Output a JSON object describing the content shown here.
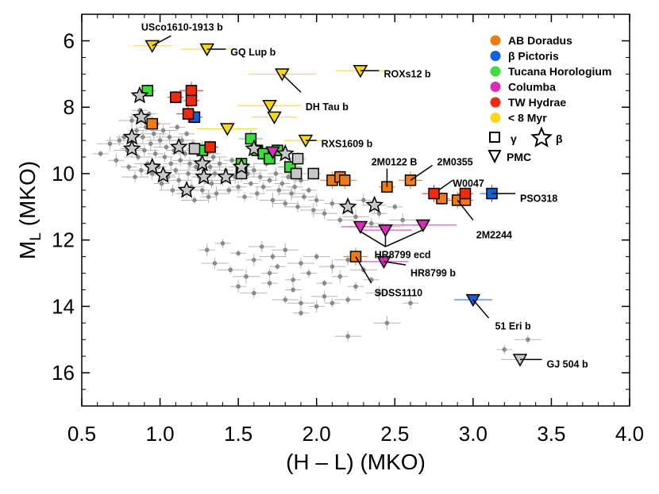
{
  "chart_data": {
    "type": "scatter",
    "xlabel": "(H – L) (MKO)",
    "ylabel_main": "M",
    "ylabel_sub": "L",
    "ylabel_suffix": " (MKO)",
    "xlim": [
      0.5,
      4.0
    ],
    "ylim": [
      17.0,
      5.2
    ],
    "xticks": [
      0.5,
      1.0,
      1.5,
      2.0,
      2.5,
      3.0,
      3.5,
      4.0
    ],
    "yticks": [
      6,
      8,
      10,
      12,
      14,
      16
    ],
    "colors": {
      "AB Doradus": "#f07a14",
      "β Pictoris": "#1460d8",
      "Tucana Horologium": "#3ddc3d",
      "Columba": "#d62eb4",
      "TW Hydrae": "#f02a10",
      "< 8 Myr": "#f5d81c",
      "field": "#8a8a8a",
      "gamma": "#c8c8c8",
      "beta": "#c8c8c8"
    },
    "legend": {
      "groups": [
        "AB Doradus",
        "β Pictoris",
        "Tucana Horologium",
        "Columba",
        "TW Hydrae",
        "< 8 Myr"
      ],
      "gamma_label": "γ",
      "beta_label": "β",
      "pmc_label": "PMC"
    },
    "field": [
      [
        0.62,
        9.4
      ],
      [
        0.68,
        9.1
      ],
      [
        0.72,
        9.6
      ],
      [
        0.74,
        9.0
      ],
      [
        0.77,
        8.9
      ],
      [
        0.79,
        9.3
      ],
      [
        0.8,
        9.8
      ],
      [
        0.82,
        8.4
      ],
      [
        0.83,
        9.2
      ],
      [
        0.84,
        10.1
      ],
      [
        0.85,
        8.7
      ],
      [
        0.86,
        9.5
      ],
      [
        0.87,
        8.1
      ],
      [
        0.88,
        9.9
      ],
      [
        0.89,
        8.9
      ],
      [
        0.9,
        9.3
      ],
      [
        0.91,
        8.6
      ],
      [
        0.92,
        9.7
      ],
      [
        0.93,
        8.2
      ],
      [
        0.94,
        9.1
      ],
      [
        0.95,
        10.0
      ],
      [
        0.96,
        8.8
      ],
      [
        0.97,
        9.4
      ],
      [
        0.98,
        8.5
      ],
      [
        0.99,
        9.8
      ],
      [
        1.0,
        9.0
      ],
      [
        1.01,
        10.3
      ],
      [
        1.02,
        8.7
      ],
      [
        1.03,
        9.5
      ],
      [
        1.04,
        9.2
      ],
      [
        1.05,
        10.1
      ],
      [
        1.06,
        8.9
      ],
      [
        1.07,
        9.7
      ],
      [
        1.08,
        10.5
      ],
      [
        1.09,
        9.3
      ],
      [
        1.1,
        9.9
      ],
      [
        1.11,
        8.6
      ],
      [
        1.12,
        10.2
      ],
      [
        1.13,
        9.6
      ],
      [
        1.14,
        9.0
      ],
      [
        1.15,
        10.6
      ],
      [
        1.16,
        9.4
      ],
      [
        1.17,
        8.8
      ],
      [
        1.18,
        10.0
      ],
      [
        1.19,
        9.7
      ],
      [
        1.2,
        10.4
      ],
      [
        1.21,
        9.1
      ],
      [
        1.22,
        10.8
      ],
      [
        1.23,
        9.8
      ],
      [
        1.24,
        9.3
      ],
      [
        1.25,
        10.1
      ],
      [
        1.26,
        9.6
      ],
      [
        1.27,
        10.5
      ],
      [
        1.28,
        9.9
      ],
      [
        1.29,
        10.2
      ],
      [
        1.3,
        9.4
      ],
      [
        1.31,
        10.7
      ],
      [
        1.32,
        9.8
      ],
      [
        1.33,
        10.3
      ],
      [
        1.34,
        9.5
      ],
      [
        1.35,
        10.0
      ],
      [
        1.36,
        10.6
      ],
      [
        1.38,
        9.7
      ],
      [
        1.4,
        10.2
      ],
      [
        1.42,
        9.9
      ],
      [
        1.44,
        10.5
      ],
      [
        1.46,
        9.6
      ],
      [
        1.48,
        10.1
      ],
      [
        1.5,
        10.4
      ],
      [
        1.52,
        9.8
      ],
      [
        1.54,
        10.7
      ],
      [
        1.56,
        10.0
      ],
      [
        1.58,
        10.3
      ],
      [
        1.6,
        9.9
      ],
      [
        1.62,
        10.6
      ],
      [
        1.64,
        10.1
      ],
      [
        1.66,
        10.4
      ],
      [
        1.68,
        9.7
      ],
      [
        1.7,
        10.2
      ],
      [
        1.72,
        10.8
      ],
      [
        1.74,
        10.0
      ],
      [
        1.76,
        10.5
      ],
      [
        1.78,
        10.3
      ],
      [
        1.8,
        10.9
      ],
      [
        1.82,
        10.1
      ],
      [
        1.84,
        10.6
      ],
      [
        1.86,
        10.4
      ],
      [
        1.88,
        11.0
      ],
      [
        1.9,
        10.2
      ],
      [
        1.92,
        10.7
      ],
      [
        1.95,
        10.5
      ],
      [
        1.98,
        11.1
      ],
      [
        2.0,
        10.8
      ],
      [
        2.05,
        11.2
      ],
      [
        2.1,
        10.9
      ],
      [
        2.15,
        11.4
      ],
      [
        2.2,
        11.0
      ],
      [
        2.25,
        11.3
      ],
      [
        2.3,
        10.8
      ],
      [
        2.35,
        11.5
      ],
      [
        2.4,
        11.2
      ],
      [
        2.45,
        11.6
      ],
      [
        2.5,
        11.0
      ],
      [
        2.55,
        11.4
      ],
      [
        1.3,
        12.3
      ],
      [
        1.35,
        12.7
      ],
      [
        1.4,
        12.1
      ],
      [
        1.45,
        12.9
      ],
      [
        1.5,
        12.4
      ],
      [
        1.55,
        13.1
      ],
      [
        1.6,
        12.6
      ],
      [
        1.65,
        12.2
      ],
      [
        1.7,
        13.0
      ],
      [
        1.72,
        12.5
      ],
      [
        1.75,
        12.8
      ],
      [
        1.8,
        12.3
      ],
      [
        1.85,
        13.2
      ],
      [
        1.9,
        12.7
      ],
      [
        1.95,
        13.0
      ],
      [
        2.0,
        12.5
      ],
      [
        2.05,
        13.3
      ],
      [
        2.1,
        12.8
      ],
      [
        2.15,
        13.1
      ],
      [
        2.2,
        12.6
      ],
      [
        2.25,
        13.4
      ],
      [
        2.3,
        12.9
      ],
      [
        2.35,
        13.2
      ],
      [
        2.4,
        13.6
      ],
      [
        1.5,
        13.4
      ],
      [
        1.6,
        13.6
      ],
      [
        1.7,
        13.3
      ],
      [
        1.8,
        13.8
      ],
      [
        1.85,
        13.5
      ],
      [
        1.9,
        13.9
      ],
      [
        2.0,
        14.0
      ],
      [
        2.05,
        13.7
      ],
      [
        2.1,
        13.9
      ],
      [
        2.2,
        13.8
      ],
      [
        1.9,
        14.2
      ],
      [
        2.45,
        14.5
      ],
      [
        2.6,
        13.9
      ],
      [
        2.2,
        14.9
      ],
      [
        3.2,
        15.3
      ],
      [
        3.35,
        15.0
      ]
    ],
    "series": [
      {
        "name": "AB Doradus",
        "marker": "square",
        "points": [
          [
            0.95,
            8.5
          ],
          [
            2.1,
            10.2
          ],
          [
            2.15,
            10.1
          ],
          [
            2.18,
            10.2
          ],
          [
            2.45,
            10.4
          ],
          [
            2.6,
            10.2
          ],
          [
            2.8,
            10.75
          ],
          [
            2.9,
            10.8
          ],
          [
            2.95,
            10.8
          ],
          [
            2.25,
            12.5
          ]
        ]
      },
      {
        "name": "β Pictoris",
        "marker": "square",
        "points": [
          [
            1.22,
            8.3
          ],
          [
            3.12,
            10.6
          ]
        ]
      },
      {
        "name": "β Pictoris",
        "marker": "triangle",
        "points": [
          [
            3.0,
            13.8
          ]
        ]
      },
      {
        "name": "Tucana Horologium",
        "marker": "square",
        "points": [
          [
            0.92,
            7.5
          ],
          [
            1.27,
            9.3
          ],
          [
            1.52,
            9.7
          ],
          [
            1.58,
            8.95
          ],
          [
            1.62,
            9.3
          ],
          [
            1.66,
            9.4
          ],
          [
            1.7,
            9.55
          ],
          [
            1.83,
            9.8
          ],
          [
            1.75,
            9.3
          ]
        ]
      },
      {
        "name": "Columba",
        "marker": "triangle",
        "points": [
          [
            1.72,
            9.35
          ]
        ]
      },
      {
        "name": "TW Hydrae",
        "marker": "square",
        "points": [
          [
            1.1,
            7.7
          ],
          [
            1.2,
            7.5
          ],
          [
            1.2,
            7.8
          ],
          [
            1.18,
            8.2
          ],
          [
            1.32,
            9.2
          ],
          [
            2.75,
            10.6
          ],
          [
            2.95,
            10.6
          ]
        ]
      },
      {
        "name": "< 8 Myr",
        "marker": "triangle",
        "points": [
          [
            0.95,
            6.15
          ],
          [
            1.3,
            6.25
          ],
          [
            1.78,
            7.0
          ],
          [
            2.28,
            6.9
          ],
          [
            1.7,
            7.95
          ],
          [
            1.73,
            8.3
          ],
          [
            1.43,
            8.65
          ],
          [
            1.93,
            9.0
          ]
        ]
      },
      {
        "name": "Columba",
        "marker": "triangle",
        "points": [
          [
            2.28,
            11.6
          ],
          [
            2.44,
            11.7
          ],
          [
            2.68,
            11.55
          ],
          [
            2.43,
            12.65
          ]
        ]
      },
      {
        "name": "gamma",
        "marker": "square",
        "points": [
          [
            1.22,
            9.25
          ],
          [
            1.52,
            10.0
          ],
          [
            1.88,
            9.55
          ],
          [
            1.87,
            10.0
          ],
          [
            1.98,
            10.0
          ]
        ]
      },
      {
        "name": "gamma",
        "marker": "triangle",
        "points": [
          [
            3.3,
            15.6
          ]
        ]
      },
      {
        "name": "beta",
        "marker": "star",
        "points": [
          [
            0.87,
            7.65
          ],
          [
            0.88,
            8.3
          ],
          [
            0.82,
            8.9
          ],
          [
            0.82,
            9.25
          ],
          [
            0.95,
            9.8
          ],
          [
            1.02,
            10.05
          ],
          [
            1.12,
            9.2
          ],
          [
            1.17,
            10.5
          ],
          [
            1.27,
            9.7
          ],
          [
            1.28,
            10.1
          ],
          [
            1.42,
            10.1
          ],
          [
            1.52,
            9.8
          ],
          [
            1.6,
            9.25
          ],
          [
            1.8,
            9.4
          ],
          [
            2.2,
            11.0
          ],
          [
            2.37,
            10.95
          ]
        ]
      }
    ],
    "annotations": [
      {
        "text": "USco1610-1913 b",
        "x": 0.95,
        "y": 6.15,
        "tx": 0.88,
        "ty": 5.6,
        "lx": 1.07,
        "ly": 5.85
      },
      {
        "text": "GQ Lup b",
        "x": 1.3,
        "y": 6.25,
        "tx": 1.45,
        "ty": 6.35,
        "lx": 1.42,
        "ly": 6.25
      },
      {
        "text": "ROXs12 b",
        "x": 2.28,
        "y": 6.9,
        "tx": 2.43,
        "ty": 7.0,
        "lx": 2.4,
        "ly": 6.9
      },
      {
        "text": "DH Tau b",
        "x": 1.78,
        "y": 7.0,
        "tx": 1.93,
        "ty": 8.0,
        "lx": 1.9,
        "ly": 7.55
      },
      {
        "text": "RXS1609 b",
        "x": 1.93,
        "y": 9.0,
        "tx": 2.03,
        "ty": 9.1,
        "lx": 2.0,
        "ly": 9.0
      },
      {
        "text": "2M0122 B",
        "x": 2.45,
        "y": 10.4,
        "tx": 2.35,
        "ty": 9.65,
        "lx": 2.45,
        "ly": 9.85
      },
      {
        "text": "2M0355",
        "x": 2.6,
        "y": 10.2,
        "tx": 2.77,
        "ty": 9.65,
        "lx": 2.74,
        "ly": 9.75
      },
      {
        "text": "W0047",
        "x": 2.78,
        "y": 10.5,
        "tx": 2.87,
        "ty": 10.3,
        "lx": 2.87,
        "ly": 10.2
      },
      {
        "text": "PSO318",
        "x": 3.12,
        "y": 10.6,
        "tx": 3.3,
        "ty": 10.75,
        "lx": 3.27,
        "ly": 10.6
      },
      {
        "text": "2M2244",
        "x": 2.9,
        "y": 10.8,
        "tx": 3.02,
        "ty": 11.85,
        "lx": 3.0,
        "ly": 11.4
      },
      {
        "text": "HR8799 ecd",
        "x": 2.44,
        "y": 12.2,
        "tx": 2.37,
        "ty": 12.45,
        "lx": 2.44,
        "ly": 12.2
      },
      {
        "text": "HR8799 b",
        "x": 2.43,
        "y": 12.65,
        "tx": 2.6,
        "ty": 13.0,
        "lx": 2.57,
        "ly": 12.75
      },
      {
        "text": "SDSS1110",
        "x": 2.25,
        "y": 12.5,
        "tx": 2.37,
        "ty": 13.6,
        "lx": 2.35,
        "ly": 13.3
      },
      {
        "text": "51 Eri b",
        "x": 3.0,
        "y": 13.8,
        "tx": 3.14,
        "ty": 14.6,
        "lx": 3.1,
        "ly": 14.35
      },
      {
        "text": "GJ 504 b",
        "x": 3.3,
        "y": 15.6,
        "tx": 3.47,
        "ty": 15.75,
        "lx": 3.44,
        "ly": 15.6
      }
    ]
  }
}
